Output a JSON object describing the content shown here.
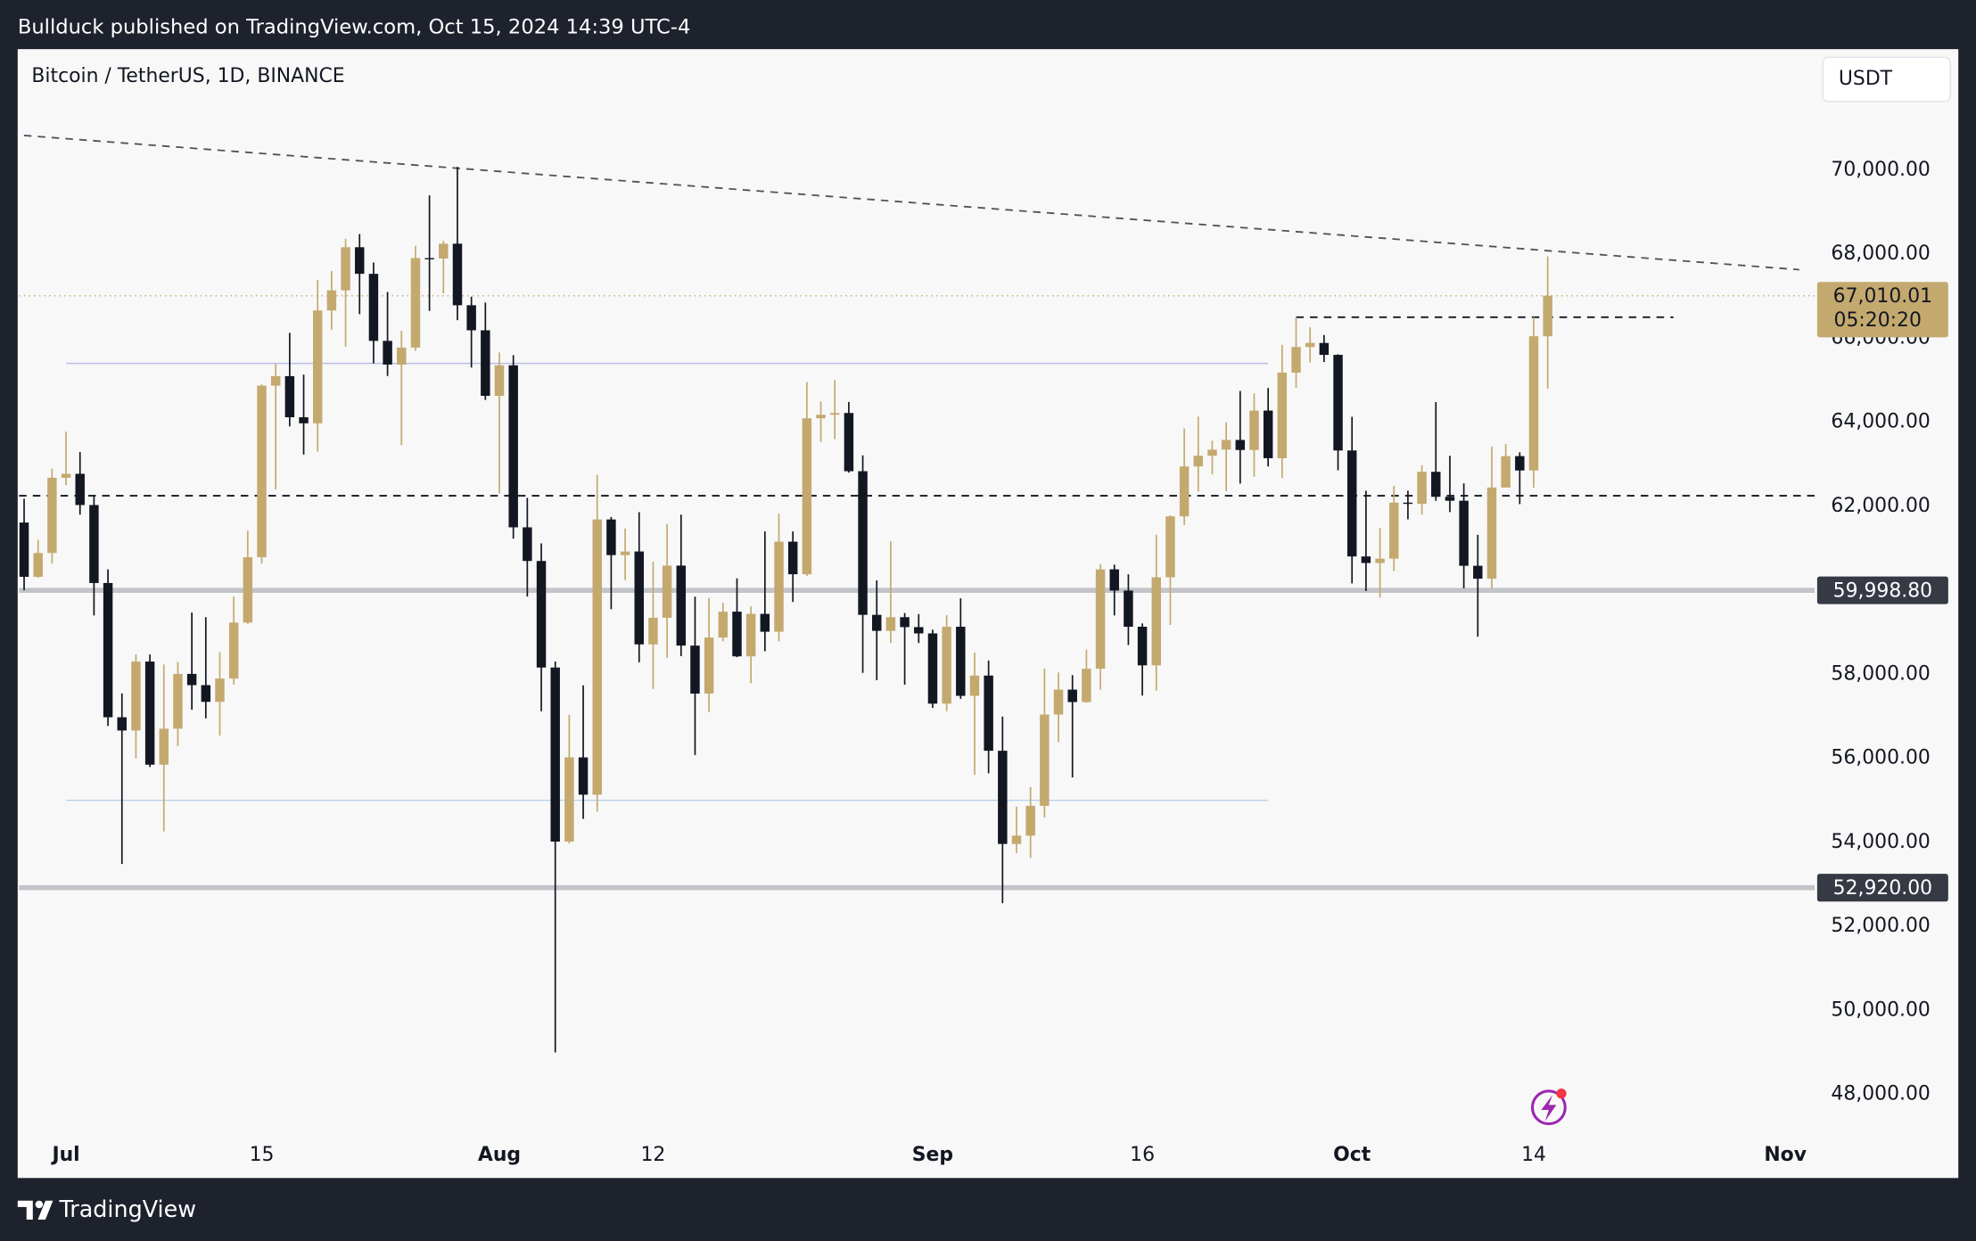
{
  "header": "Bullduck published on TradingView.com, Oct 15, 2024 14:39 UTC-4",
  "footer": "TradingView",
  "chart_data": {
    "type": "candlestick",
    "title": "Bitcoin / TetherUS, 1D, BINANCE",
    "currency": "USDT",
    "up_color": "#c4a96f",
    "down_color": "#131722",
    "x": [
      "2024-06-28",
      "2024-06-29",
      "2024-06-30",
      "2024-07-01",
      "2024-07-02",
      "2024-07-03",
      "2024-07-04",
      "2024-07-05",
      "2024-07-06",
      "2024-07-07",
      "2024-07-08",
      "2024-07-09",
      "2024-07-10",
      "2024-07-11",
      "2024-07-12",
      "2024-07-13",
      "2024-07-14",
      "2024-07-15",
      "2024-07-16",
      "2024-07-17",
      "2024-07-18",
      "2024-07-19",
      "2024-07-20",
      "2024-07-21",
      "2024-07-22",
      "2024-07-23",
      "2024-07-24",
      "2024-07-25",
      "2024-07-26",
      "2024-07-27",
      "2024-07-28",
      "2024-07-29",
      "2024-07-30",
      "2024-07-31",
      "2024-08-01",
      "2024-08-02",
      "2024-08-03",
      "2024-08-04",
      "2024-08-05",
      "2024-08-06",
      "2024-08-07",
      "2024-08-08",
      "2024-08-09",
      "2024-08-10",
      "2024-08-11",
      "2024-08-12",
      "2024-08-13",
      "2024-08-14",
      "2024-08-15",
      "2024-08-16",
      "2024-08-17",
      "2024-08-18",
      "2024-08-19",
      "2024-08-20",
      "2024-08-21",
      "2024-08-22",
      "2024-08-23",
      "2024-08-24",
      "2024-08-25",
      "2024-08-26",
      "2024-08-27",
      "2024-08-28",
      "2024-08-29",
      "2024-08-30",
      "2024-08-31",
      "2024-09-01",
      "2024-09-02",
      "2024-09-03",
      "2024-09-04",
      "2024-09-05",
      "2024-09-06",
      "2024-09-07",
      "2024-09-08",
      "2024-09-09",
      "2024-09-10",
      "2024-09-11",
      "2024-09-12",
      "2024-09-13",
      "2024-09-14",
      "2024-09-15",
      "2024-09-16",
      "2024-09-17",
      "2024-09-18",
      "2024-09-19",
      "2024-09-20",
      "2024-09-21",
      "2024-09-22",
      "2024-09-23",
      "2024-09-24",
      "2024-09-25",
      "2024-09-26",
      "2024-09-27",
      "2024-09-28",
      "2024-09-29",
      "2024-09-30",
      "2024-10-01",
      "2024-10-02",
      "2024-10-03",
      "2024-10-04",
      "2024-10-05",
      "2024-10-06",
      "2024-10-07",
      "2024-10-08",
      "2024-10-09",
      "2024-10-10",
      "2024-10-11",
      "2024-10-12",
      "2024-10-13",
      "2024-10-14",
      "2024-10-15"
    ],
    "open": [
      61612,
      60320,
      60887,
      62678,
      62772,
      62029,
      60173,
      56977,
      56662,
      58303,
      55849,
      56705,
      58009,
      57742,
      57344,
      57899,
      59231,
      60787,
      64870,
      65097,
      64118,
      63974,
      66660,
      67139,
      68165,
      67532,
      65936,
      65372,
      65777,
      67907,
      67896,
      68249,
      66784,
      66188,
      64628,
      65354,
      61498,
      60697,
      58161,
      54018,
      56022,
      55134,
      61685,
      60837,
      60923,
      58712,
      59346,
      60587,
      58683,
      57541,
      58874,
      59491,
      58427,
      59438,
      59013,
      61157,
      60381,
      64094,
      64178,
      64219,
      62834,
      59415,
      59034,
      59359,
      59123,
      58973,
      57301,
      59132,
      57487,
      57970,
      56180,
      53962,
      54160,
      54869,
      57042,
      57635,
      57339,
      58132,
      60498,
      59993,
      59132,
      58213,
      60309,
      61759,
      62947,
      63201,
      63348,
      63578,
      63339,
      64277,
      63143,
      65181,
      65790,
      65887,
      65603,
      63327,
      60805,
      60649,
      60752,
      62086,
      62058,
      62819,
      62224,
      62131,
      60583,
      60275,
      62445,
      63193,
      62851,
      66046
    ],
    "high": [
      62176,
      61197,
      62892,
      63777,
      63288,
      62272,
      60498,
      57546,
      58475,
      58472,
      58236,
      58296,
      59470,
      59360,
      58526,
      59850,
      61420,
      64900,
      65388,
      66128,
      65133,
      67386,
      67600,
      68366,
      68480,
      67800,
      67100,
      66175,
      68200,
      69399,
      68318,
      70079,
      66988,
      66849,
      65659,
      65596,
      62198,
      61117,
      58305,
      57040,
      57736,
      62745,
      61744,
      61470,
      61858,
      60680,
      61578,
      61800,
      59849,
      59817,
      59700,
      60284,
      59617,
      61400,
      61820,
      61400,
      64955,
      64494,
      64999,
      64481,
      63212,
      60234,
      61166,
      59459,
      59432,
      59063,
      59410,
      59809,
      58519,
      58327,
      56995,
      54850,
      55317,
      58137,
      58044,
      57981,
      58588,
      60625,
      60610,
      60380,
      59210,
      61320,
      61786,
      63850,
      64133,
      63559,
      64000,
      64745,
      64688,
      64817,
      65839,
      66498,
      66260,
      66076,
      65618,
      64130,
      62370,
      61481,
      62484,
      62370,
      62975,
      64478,
      63200,
      62543,
      61320,
      63417,
      63480,
      63285,
      66500,
      67950
    ],
    "low": [
      60000,
      60300,
      60632,
      62500,
      61800,
      59400,
      56771,
      53485,
      56000,
      55793,
      54260,
      56289,
      57157,
      56952,
      56540,
      57756,
      59200,
      60632,
      62400,
      63900,
      63230,
      63300,
      66200,
      65800,
      66573,
      65400,
      65100,
      63456,
      65700,
      66650,
      67066,
      66428,
      65302,
      64530,
      62302,
      61230,
      59850,
      57122,
      49000,
      53970,
      54558,
      54730,
      59550,
      60242,
      58286,
      57650,
      58392,
      58433,
      56078,
      57098,
      58785,
      58408,
      57787,
      58548,
      58783,
      59724,
      60342,
      63531,
      63595,
      62800,
      58034,
      57860,
      58745,
      57752,
      58745,
      57201,
      57120,
      57415,
      55606,
      55643,
      52550,
      53745,
      53629,
      54592,
      56386,
      55545,
      57324,
      57632,
      59400,
      58696,
      57493,
      57610,
      59174,
      61555,
      62350,
      62758,
      62357,
      62538,
      62700,
      62947,
      62670,
      64819,
      65422,
      65432,
      62856,
      60164,
      59981,
      59828,
      60459,
      61689,
      61798,
      62128,
      61860,
      60046,
      58895,
      60046,
      62445,
      62050,
      62442,
      64800
    ],
    "close": [
      60320,
      60887,
      62678,
      62772,
      62029,
      60173,
      56977,
      56662,
      58303,
      55849,
      56705,
      58009,
      57742,
      57344,
      57899,
      59231,
      60787,
      64870,
      65097,
      64118,
      63974,
      66660,
      67139,
      68165,
      67532,
      65936,
      65372,
      65777,
      67907,
      67896,
      68249,
      66784,
      66188,
      64628,
      65354,
      61498,
      60697,
      58161,
      54018,
      56022,
      55134,
      61685,
      60837,
      60923,
      58712,
      59346,
      60587,
      58683,
      57541,
      58874,
      59491,
      58427,
      59438,
      59013,
      61157,
      60381,
      64094,
      64178,
      64219,
      62834,
      59415,
      59034,
      59359,
      59123,
      58973,
      57301,
      59132,
      57487,
      57970,
      56180,
      53962,
      54160,
      54869,
      57042,
      57635,
      57339,
      58132,
      60498,
      59993,
      59132,
      58213,
      60309,
      61759,
      62947,
      63201,
      63348,
      63578,
      63339,
      64277,
      63143,
      65181,
      65790,
      65887,
      65603,
      63327,
      60805,
      60649,
      60752,
      62086,
      62058,
      62819,
      62224,
      62131,
      60583,
      60275,
      62445,
      63193,
      62851,
      66046,
      67010.01
    ],
    "xlim": [
      "2024-06-27",
      "2024-11-04"
    ],
    "xticks": [
      {
        "value": "2024-07-01",
        "label": "Jul"
      },
      {
        "value": "2024-07-15",
        "label": "15"
      },
      {
        "value": "2024-08-01",
        "label": "Aug"
      },
      {
        "value": "2024-08-12",
        "label": "12"
      },
      {
        "value": "2024-09-01",
        "label": "Sep"
      },
      {
        "value": "2024-09-16",
        "label": "16"
      },
      {
        "value": "2024-10-01",
        "label": "Oct"
      },
      {
        "value": "2024-10-14",
        "label": "14"
      },
      {
        "value": "2024-11-01",
        "label": "Nov"
      }
    ],
    "ylim": [
      47150,
      72880
    ],
    "yticks": [
      {
        "value": 48000,
        "label": "48,000.00"
      },
      {
        "value": 50000,
        "label": "50,000.00"
      },
      {
        "value": 52000,
        "label": "52,000.00"
      },
      {
        "value": 54000,
        "label": "54,000.00"
      },
      {
        "value": 56000,
        "label": "56,000.00"
      },
      {
        "value": 58000,
        "label": "58,000.00"
      },
      {
        "value": 60000,
        "label": "60,000.00"
      },
      {
        "value": 62000,
        "label": "62,000.00"
      },
      {
        "value": 64000,
        "label": "64,000.00"
      },
      {
        "value": 66000,
        "label": "66,000.00"
      },
      {
        "value": 68000,
        "label": "68,000.00"
      },
      {
        "value": 70000,
        "label": "70,000.00"
      }
    ],
    "horizontal_lines": [
      {
        "value": 62250,
        "style": "dashed",
        "color": "#131722"
      },
      {
        "value": 59998.8,
        "label": "59,998.80",
        "style": "thick",
        "color": "#c3c4c9"
      },
      {
        "value": 52920,
        "label": "52,920.00",
        "style": "thick",
        "color": "#c3c4c9"
      }
    ],
    "segments": [
      {
        "x": [
          "2024-06-27",
          "2024-11-02"
        ],
        "y": [
          70850,
          67630
        ],
        "style": "dashed",
        "color": "#50535e"
      },
      {
        "x": [
          "2024-09-27",
          "2024-10-24"
        ],
        "y": [
          66500,
          66500
        ],
        "style": "dashed",
        "color": "#131722"
      },
      {
        "x": [
          "2024-07-01",
          "2024-09-25"
        ],
        "y": [
          65400,
          65400
        ],
        "style": "solid",
        "color": "#b8bde6"
      },
      {
        "x": [
          "2024-07-01",
          "2024-09-25"
        ],
        "y": [
          55000,
          55000
        ],
        "style": "solid",
        "color": "#b6d3ee"
      }
    ],
    "current_price": {
      "value": 67010.01,
      "label": "67,010.01",
      "countdown": "05:20:20",
      "color": "#c4a96f"
    }
  }
}
